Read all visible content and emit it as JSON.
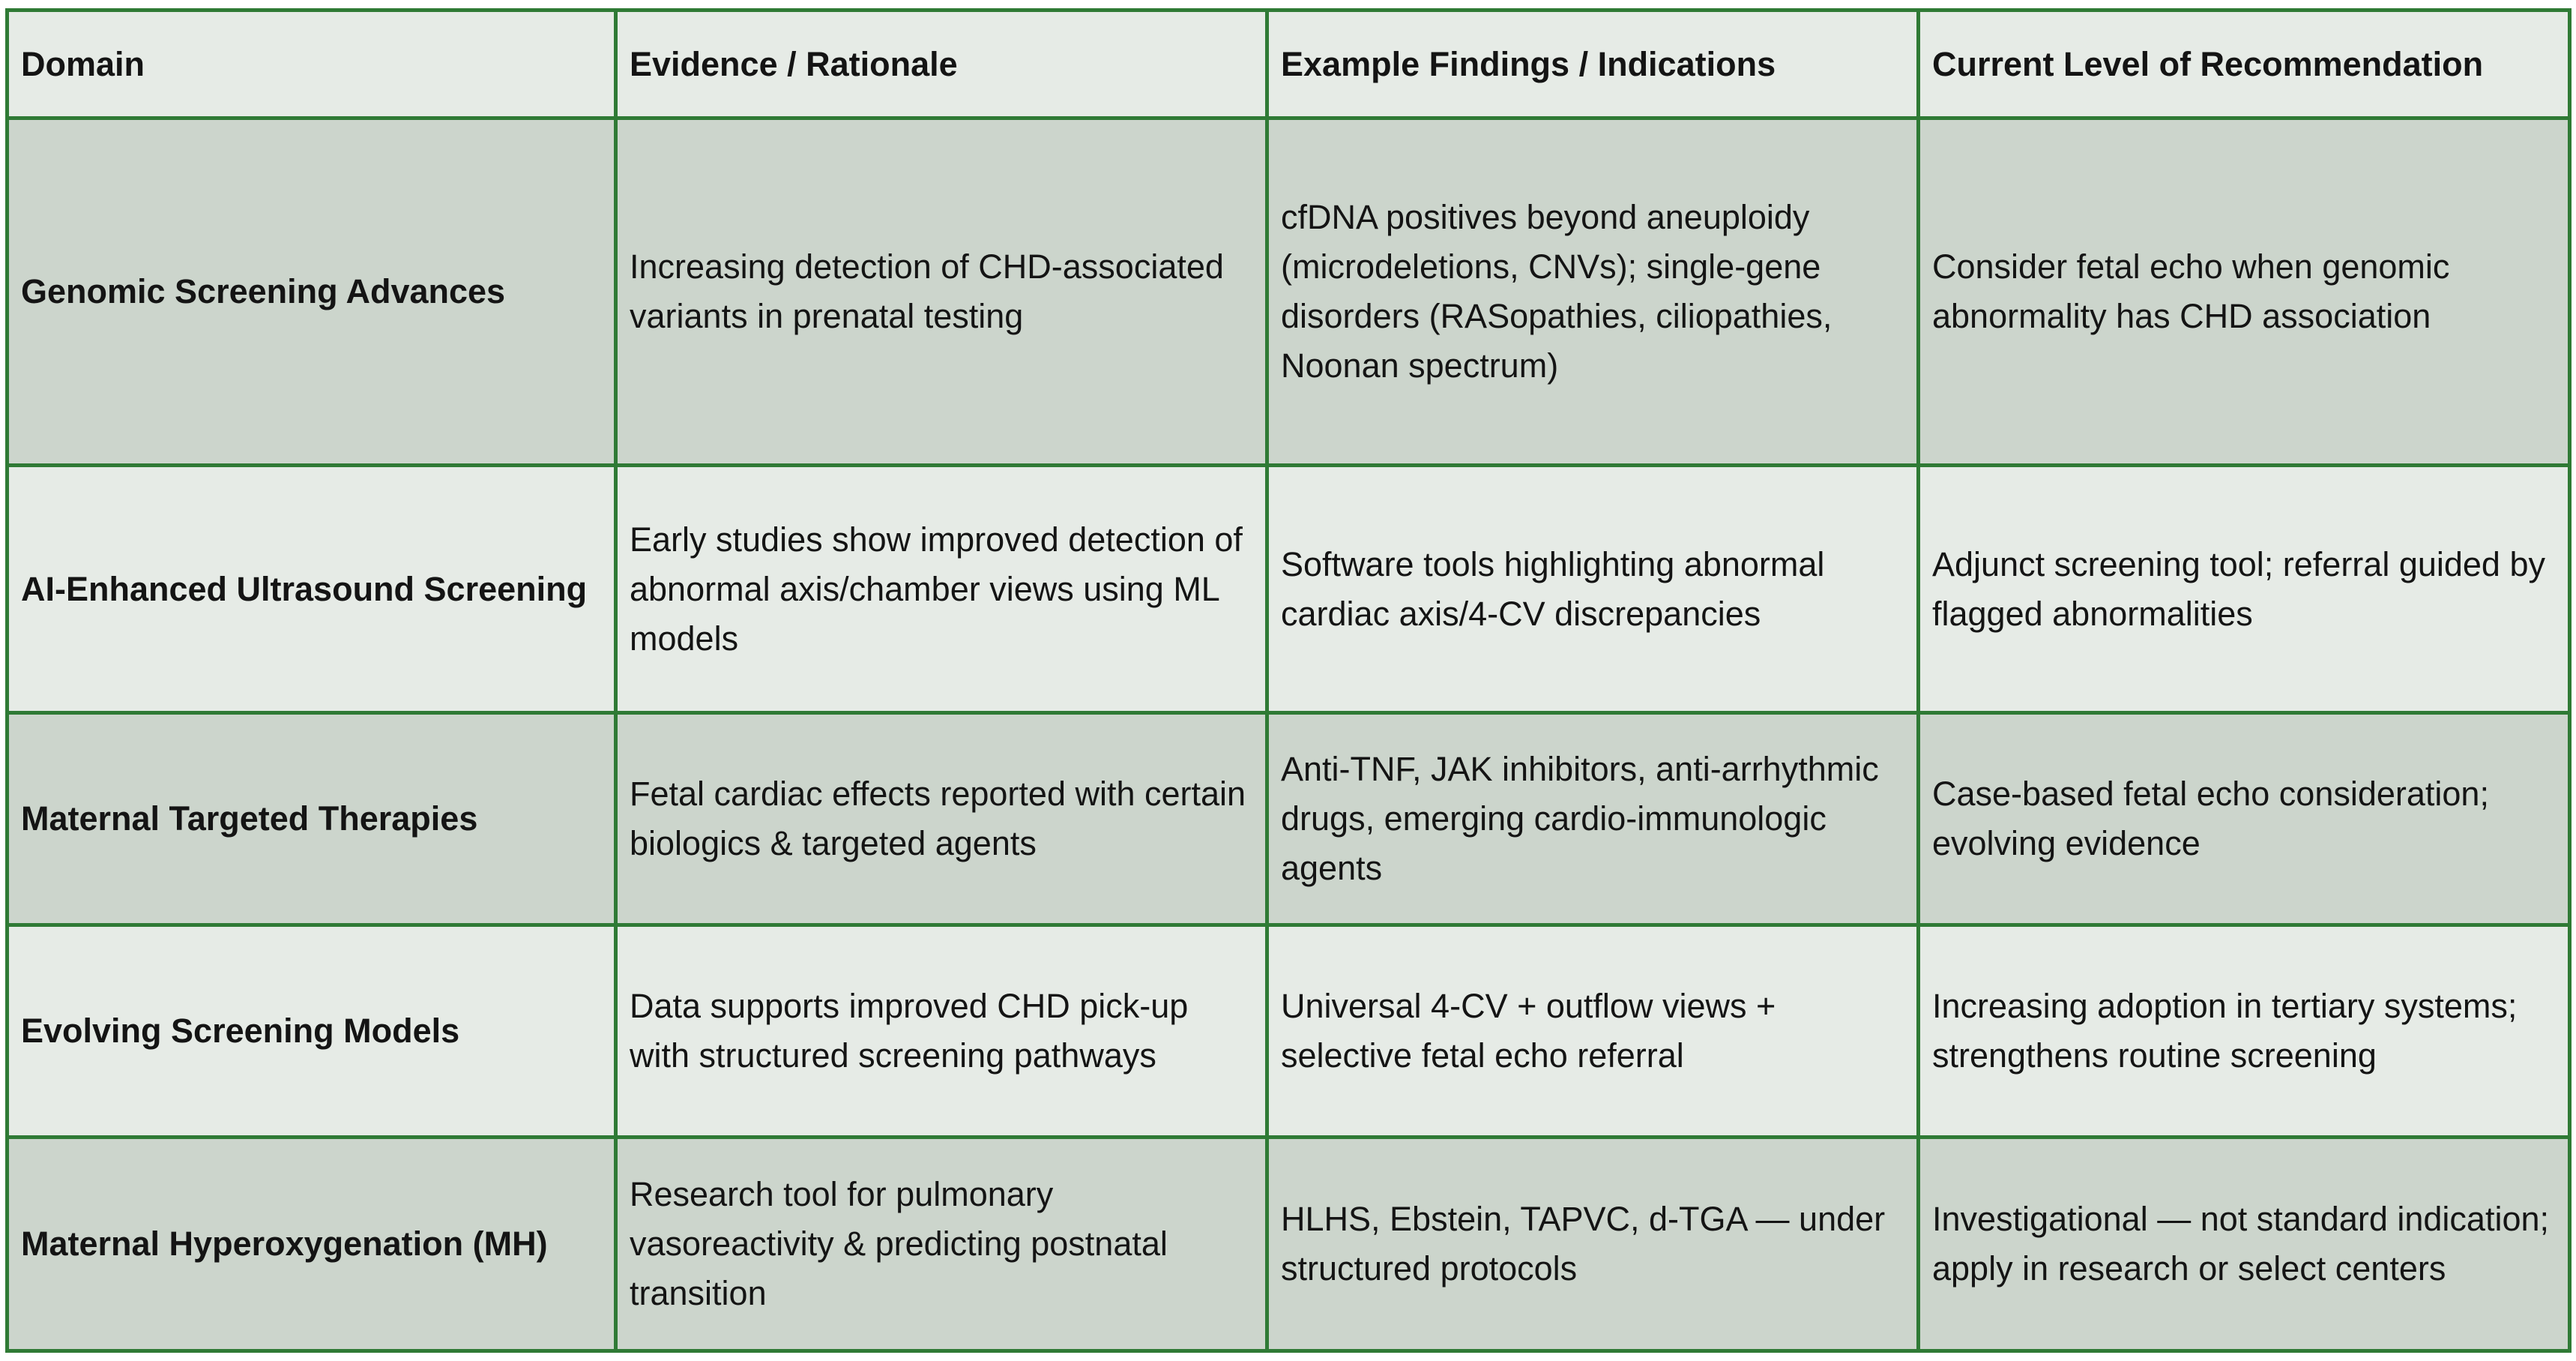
{
  "table": {
    "header": [
      "Domain",
      "Evidence / Rationale",
      "Example Findings / Indications",
      "Current Level of Recommendation"
    ],
    "rows": [
      [
        "Genomic Screening Advances",
        "Increasing detection of CHD-associated variants in prenatal testing",
        "cfDNA positives beyond aneuploidy (microdeletions, CNVs); single-gene disorders (RASopathies, ciliopathies, Noonan spectrum)",
        "Consider fetal echo when genomic abnormality has CHD association"
      ],
      [
        "AI-Enhanced Ultrasound Screening",
        "Early studies show improved detection of abnormal axis/chamber views using ML models",
        "Software tools highlighting abnormal cardiac axis/4-CV discrepancies",
        "Adjunct screening tool; referral guided by flagged abnormalities"
      ],
      [
        "Maternal Targeted Therapies",
        "Fetal cardiac effects reported with certain biologics & targeted agents",
        "Anti-TNF, JAK inhibitors, anti-arrhythmic drugs, emerging cardio-immunologic agents",
        "Case-based fetal echo consideration; evolving evidence"
      ],
      [
        "Evolving Screening Models",
        "Data supports improved CHD pick-up with structured screening pathways",
        "Universal 4-CV + outflow views + selective fetal echo referral",
        "Increasing adoption in tertiary systems; strengthens routine screening"
      ],
      [
        "Maternal Hyperoxygenation (MH)",
        "Research tool for pulmonary vasoreactivity & predicting postnatal transition",
        "HLHS, Ebstein, TAPVC, d-TGA — under structured protocols",
        "Investigational — not standard indication; apply in research or select centers"
      ]
    ]
  }
}
